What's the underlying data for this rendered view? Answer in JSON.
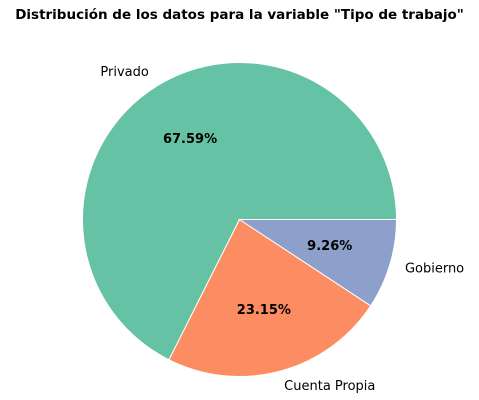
{
  "chart_data": {
    "type": "pie",
    "title": "Distribución de los datos para la variable \"Tipo de trabajo\"",
    "slices": [
      {
        "label": "Privado",
        "value": 67.59,
        "pct_text": "67.59%",
        "color": "#66c2a5"
      },
      {
        "label": "Cuenta Propia",
        "value": 23.15,
        "pct_text": "23.15%",
        "color": "#fc8d62"
      },
      {
        "label": "Gobierno",
        "value": 9.26,
        "pct_text": "9.26%",
        "color": "#8da0cb"
      }
    ],
    "start_angle_deg": 0,
    "direction": "counterclockwise"
  }
}
